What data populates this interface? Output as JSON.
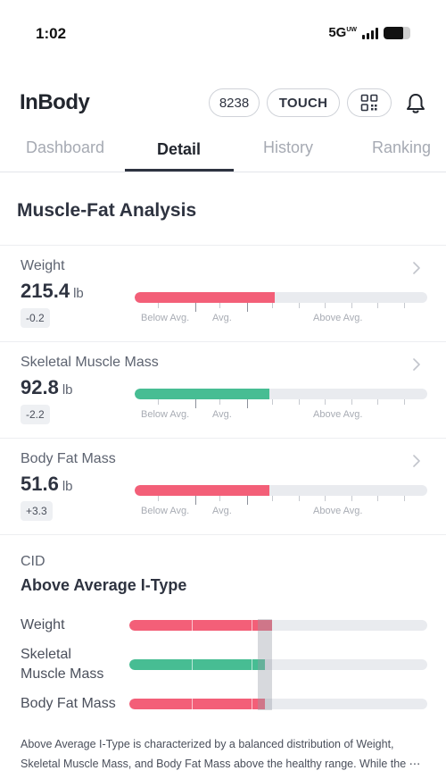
{
  "status_bar": {
    "time": "1:02",
    "network": "5G",
    "network_sub": "UW",
    "battery_level": 0.72
  },
  "header": {
    "logo": "InBody",
    "points": "8238",
    "touch_label": "TOUCH",
    "icons": [
      "qr-code-icon",
      "bell-icon"
    ]
  },
  "tabs": [
    {
      "label": "Dashboard",
      "active": false
    },
    {
      "label": "Detail",
      "active": true
    },
    {
      "label": "History",
      "active": false
    },
    {
      "label": "Ranking",
      "active": false
    }
  ],
  "section_title": "Muscle-Fat Analysis",
  "scale_labels": [
    "Below Avg.",
    "Avg.",
    "Above Avg."
  ],
  "metrics": [
    {
      "label": "Weight",
      "value": "215.4",
      "unit": "lb",
      "change": "-0.2",
      "level": 0.48,
      "color": "#f35f78"
    },
    {
      "label": "Skeletal Muscle Mass",
      "value": "92.8",
      "unit": "lb",
      "change": "-2.2",
      "level": 0.46,
      "color": "#47bd93"
    },
    {
      "label": "Body Fat Mass",
      "value": "51.6",
      "unit": "lb",
      "change": "+3.3",
      "level": 0.46,
      "color": "#f35f78"
    }
  ],
  "cid": {
    "label": "CID",
    "type": "Above Average I-Type",
    "rows": [
      {
        "label": "Weight",
        "level": 0.48,
        "color": "#f35f78"
      },
      {
        "label": "Skeletal Muscle Mass",
        "label_lines": [
          "Skeletal",
          "Muscle Mass"
        ],
        "level": 0.455,
        "color": "#47bd93"
      },
      {
        "label": "Body Fat Mass",
        "level": 0.455,
        "color": "#f35f78"
      }
    ],
    "description": "Above Average I-Type is characterized by a balanced distribution of Weight, Skeletal Muscle Mass, and Body Fat Mass above the healthy range. While the ⋯"
  }
}
